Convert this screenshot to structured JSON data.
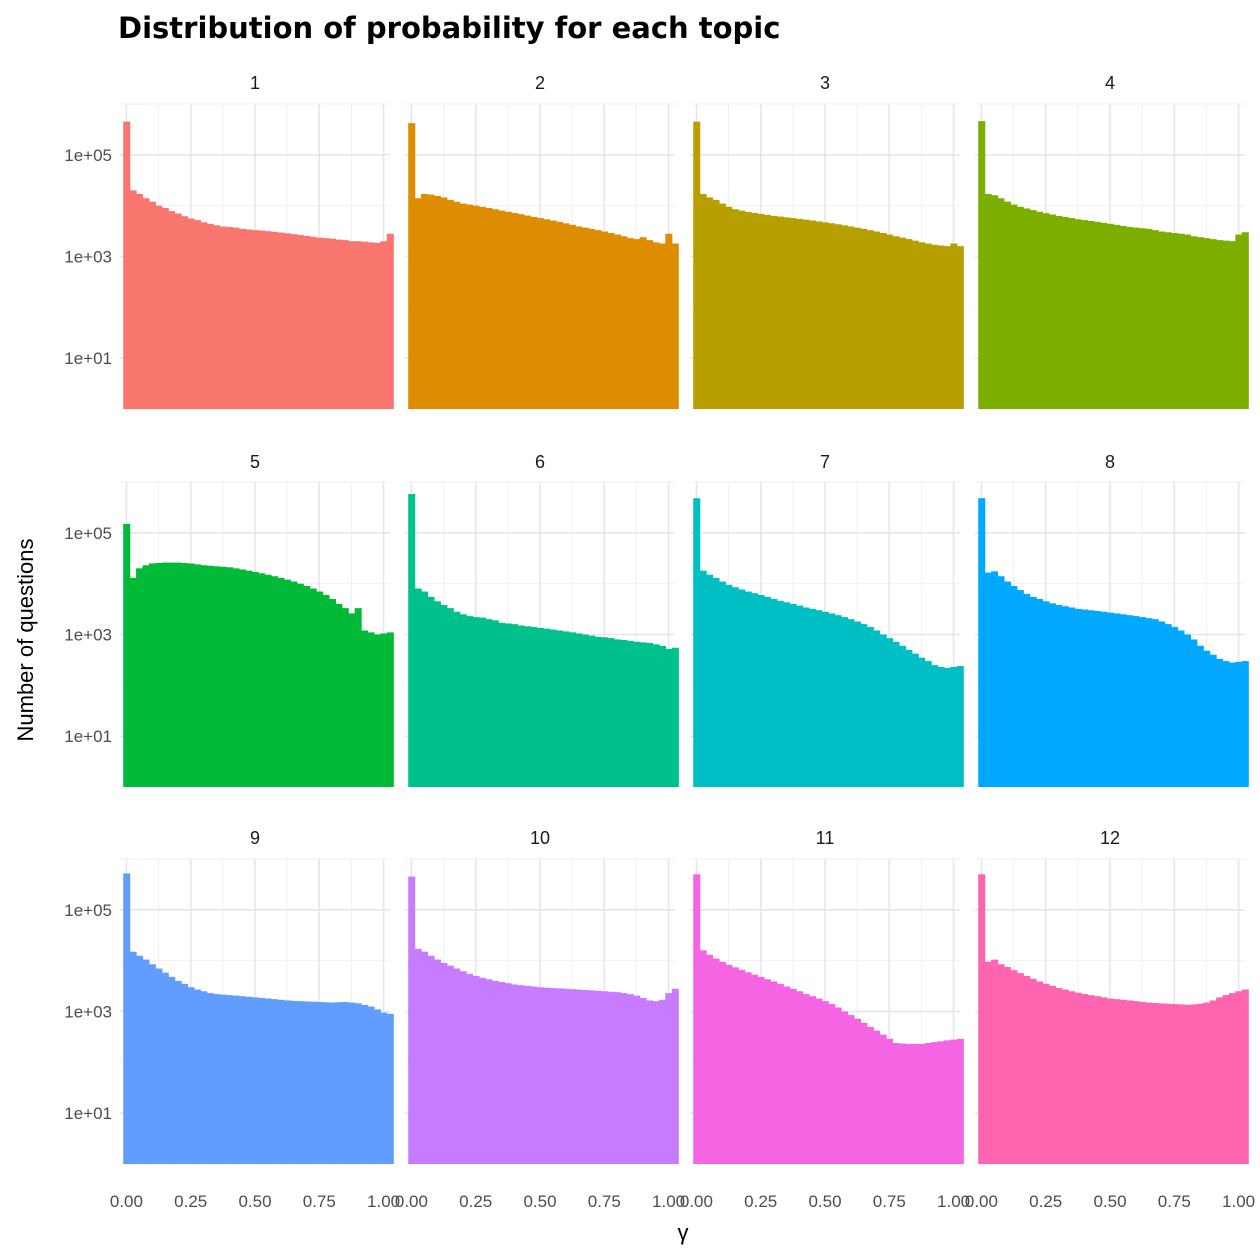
{
  "chart_data": {
    "type": "bar",
    "title": "Distribution of probability for each topic",
    "xlabel": "γ",
    "ylabel": "Number of questions",
    "y_scale": "log10",
    "ylim": [
      1,
      1000000
    ],
    "xlim": [
      -0.025,
      1.025
    ],
    "x_ticks": [
      0.0,
      0.25,
      0.5,
      0.75,
      1.0
    ],
    "x_tick_labels": [
      "0.00",
      "0.25",
      "0.50",
      "0.75",
      "1.00"
    ],
    "y_ticks": [
      10,
      1000,
      100000
    ],
    "y_tick_labels": [
      "1e+01",
      "1e+03",
      "1e+05"
    ],
    "bin_width": 0.025,
    "bin_centers_from": 0.0,
    "grid": true,
    "legend": "none",
    "layout": "facet_wrap 4 columns",
    "facets": [
      {
        "label": "1",
        "color": "#F8766D",
        "values": [
          450000,
          20000,
          17000,
          14000,
          12000,
          10000,
          9000,
          7800,
          7000,
          6200,
          5600,
          5200,
          4700,
          4400,
          4100,
          3900,
          3800,
          3700,
          3500,
          3400,
          3300,
          3250,
          3150,
          3050,
          2950,
          2850,
          2750,
          2650,
          2550,
          2450,
          2350,
          2300,
          2250,
          2150,
          2100,
          2000,
          2000,
          1950,
          1900,
          1850,
          2000,
          2800
        ]
      },
      {
        "label": "2",
        "color": "#DE8C00",
        "values": [
          420000,
          14000,
          17000,
          16500,
          15500,
          14500,
          13000,
          12000,
          11000,
          10500,
          10000,
          9500,
          9000,
          8500,
          8000,
          7600,
          7200,
          6800,
          6400,
          6000,
          5700,
          5400,
          5100,
          4800,
          4500,
          4200,
          3900,
          3700,
          3500,
          3300,
          3100,
          2900,
          2700,
          2500,
          2300,
          2200,
          2400,
          2100,
          1900,
          1800,
          2800,
          1800
        ]
      },
      {
        "label": "3",
        "color": "#B79F00",
        "values": [
          450000,
          17000,
          14500,
          13000,
          11000,
          9500,
          8500,
          8000,
          7500,
          7200,
          6900,
          6600,
          6300,
          6100,
          5900,
          5700,
          5500,
          5300,
          5100,
          4900,
          4700,
          4500,
          4300,
          4100,
          3900,
          3700,
          3500,
          3300,
          3100,
          2900,
          2700,
          2500,
          2350,
          2200,
          2050,
          1900,
          1800,
          1700,
          1650,
          1600,
          1800,
          1600
        ]
      },
      {
        "label": "4",
        "color": "#7CAE00",
        "values": [
          460000,
          17000,
          16000,
          14000,
          12000,
          10500,
          9500,
          8800,
          8200,
          7600,
          7100,
          6700,
          6300,
          6000,
          5700,
          5400,
          5200,
          5000,
          4800,
          4600,
          4400,
          4200,
          4000,
          3800,
          3700,
          3600,
          3500,
          3300,
          3100,
          3000,
          2900,
          2800,
          2700,
          2500,
          2400,
          2300,
          2200,
          2100,
          2050,
          2000,
          2700,
          3000
        ]
      },
      {
        "label": "5",
        "color": "#00BA38",
        "values": [
          150000,
          13000,
          20000,
          23000,
          25000,
          25500,
          26000,
          26000,
          26000,
          25500,
          25000,
          24000,
          23000,
          22500,
          22000,
          21500,
          21000,
          20000,
          19000,
          18000,
          17000,
          16000,
          15000,
          14000,
          13000,
          12000,
          11000,
          10000,
          9000,
          8000,
          7000,
          6000,
          5000,
          4000,
          3300,
          2600,
          3300,
          1200,
          1100,
          1000,
          1050,
          1100
        ]
      },
      {
        "label": "6",
        "color": "#00C08B",
        "values": [
          580000,
          8000,
          7000,
          5500,
          4500,
          3800,
          3300,
          2800,
          2500,
          2300,
          2200,
          2150,
          2000,
          1900,
          1700,
          1650,
          1600,
          1500,
          1450,
          1400,
          1350,
          1300,
          1250,
          1200,
          1150,
          1100,
          1050,
          1000,
          950,
          900,
          880,
          850,
          800,
          780,
          750,
          720,
          700,
          680,
          640,
          600,
          520,
          550
        ]
      },
      {
        "label": "7",
        "color": "#00BFC4",
        "values": [
          480000,
          18000,
          15000,
          13000,
          11000,
          9500,
          8500,
          7700,
          7000,
          6500,
          6000,
          5500,
          5000,
          4600,
          4300,
          4000,
          3700,
          3400,
          3200,
          3000,
          2800,
          2600,
          2400,
          2200,
          2000,
          1800,
          1600,
          1400,
          1200,
          1000,
          850,
          720,
          600,
          500,
          420,
          350,
          300,
          250,
          230,
          220,
          230,
          240
        ]
      },
      {
        "label": "8",
        "color": "#00A9FF",
        "values": [
          480000,
          16500,
          17500,
          14000,
          11000,
          9000,
          7500,
          6300,
          5500,
          5000,
          4500,
          4100,
          3800,
          3600,
          3400,
          3200,
          3100,
          3000,
          2900,
          2800,
          2700,
          2600,
          2500,
          2400,
          2300,
          2200,
          2100,
          2000,
          1800,
          1600,
          1400,
          1200,
          1000,
          800,
          600,
          480,
          400,
          330,
          300,
          280,
          290,
          300
        ]
      },
      {
        "label": "9",
        "color": "#619CFF",
        "values": [
          520000,
          15000,
          12500,
          10500,
          8500,
          7000,
          5800,
          4800,
          4000,
          3500,
          3000,
          2700,
          2500,
          2300,
          2200,
          2150,
          2100,
          2050,
          2000,
          1950,
          1900,
          1850,
          1800,
          1750,
          1700,
          1650,
          1620,
          1600,
          1580,
          1560,
          1540,
          1520,
          1500,
          1520,
          1540,
          1500,
          1450,
          1350,
          1250,
          1100,
          950,
          900
        ]
      },
      {
        "label": "10",
        "color": "#C77CFF",
        "values": [
          450000,
          17000,
          15000,
          12500,
          10500,
          9000,
          8000,
          7000,
          6200,
          5500,
          5000,
          4600,
          4300,
          4000,
          3800,
          3600,
          3400,
          3300,
          3200,
          3100,
          3000,
          2950,
          2900,
          2850,
          2800,
          2750,
          2700,
          2650,
          2600,
          2550,
          2500,
          2450,
          2400,
          2300,
          2200,
          2050,
          1850,
          1650,
          1600,
          1700,
          2300,
          2800
        ]
      },
      {
        "label": "11",
        "color": "#F564E3",
        "values": [
          500000,
          16000,
          13000,
          11000,
          9500,
          8300,
          7400,
          6600,
          5900,
          5300,
          4800,
          4300,
          3900,
          3500,
          3100,
          2800,
          2500,
          2200,
          2000,
          1800,
          1600,
          1400,
          1200,
          1000,
          850,
          720,
          600,
          500,
          420,
          350,
          290,
          240,
          235,
          230,
          230,
          230,
          240,
          250,
          260,
          270,
          280,
          290
        ]
      },
      {
        "label": "12",
        "color": "#FF64B0",
        "values": [
          500000,
          9500,
          10500,
          8500,
          7500,
          6500,
          5700,
          5000,
          4400,
          3900,
          3500,
          3200,
          2900,
          2700,
          2500,
          2350,
          2200,
          2100,
          2000,
          1900,
          1800,
          1750,
          1700,
          1650,
          1600,
          1550,
          1500,
          1470,
          1440,
          1420,
          1400,
          1380,
          1360,
          1380,
          1420,
          1500,
          1650,
          1900,
          2100,
          2300,
          2500,
          2700
        ]
      }
    ]
  }
}
